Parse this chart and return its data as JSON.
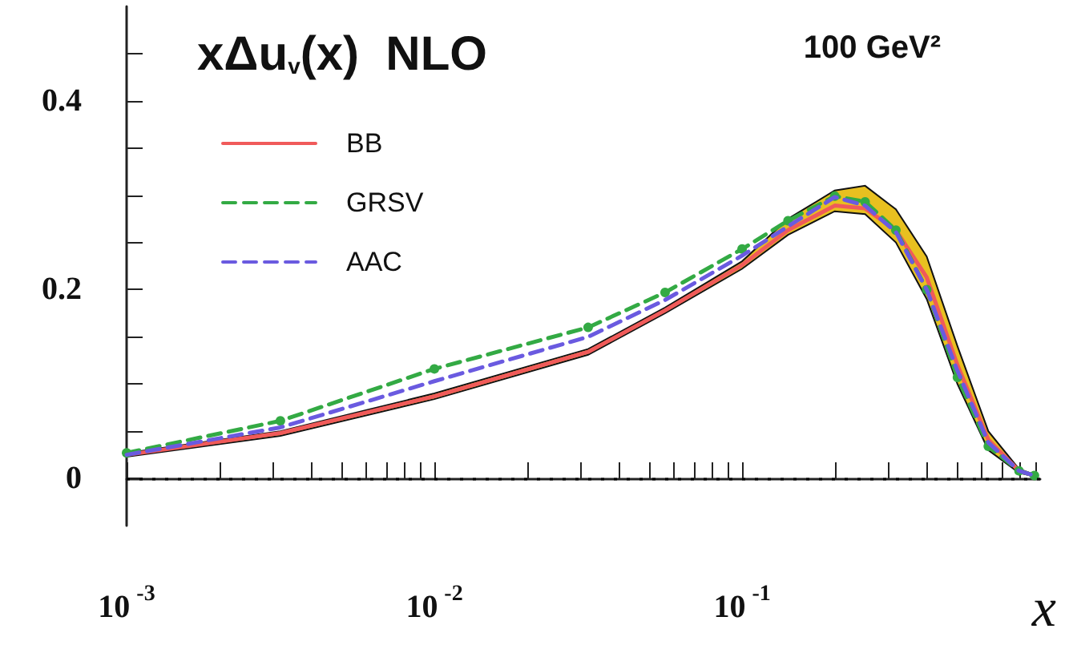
{
  "chart_data": {
    "type": "line",
    "title": "xΔu$_{v}$(x)  NLO",
    "xlabel": "x",
    "annotations": [
      "100 GeV²"
    ],
    "x": [
      0.001,
      0.00316,
      0.01,
      0.0316,
      0.0562,
      0.1,
      0.141,
      0.2,
      0.251,
      0.316,
      0.398,
      0.501,
      0.631,
      0.794,
      0.891
    ],
    "series": [
      {
        "name": "BB",
        "color": "#f05a5a",
        "line_style": "solid",
        "marker": "none",
        "values": [
          0.025,
          0.048,
          0.087,
          0.134,
          0.178,
          0.226,
          0.263,
          0.289,
          0.286,
          0.263,
          0.213,
          0.12,
          0.041,
          0.008,
          0.003
        ],
        "lower": [
          0.023,
          0.045,
          0.084,
          0.131,
          0.175,
          0.222,
          0.258,
          0.283,
          0.28,
          0.25,
          0.19,
          0.1,
          0.03,
          0.006,
          0.002
        ],
        "upper": [
          0.027,
          0.05,
          0.09,
          0.137,
          0.181,
          0.23,
          0.275,
          0.305,
          0.31,
          0.285,
          0.235,
          0.14,
          0.05,
          0.01,
          0.004
        ]
      },
      {
        "name": "GRSV",
        "color": "#33aa44",
        "line_style": "dashed",
        "marker": "circle",
        "values": [
          0.027,
          0.061,
          0.116,
          0.16,
          0.197,
          0.243,
          0.273,
          0.299,
          0.293,
          0.263,
          0.2,
          0.107,
          0.034,
          0.008,
          0.003
        ]
      },
      {
        "name": "AAC",
        "color": "#6a5ae0",
        "line_style": "dashed",
        "marker": "none",
        "values": [
          0.025,
          0.054,
          0.103,
          0.15,
          0.189,
          0.236,
          0.267,
          0.298,
          0.289,
          0.261,
          0.2,
          0.114,
          0.038,
          0.008,
          0.003
        ]
      }
    ],
    "log": "x",
    "xlim": [
      0.001,
      0.93
    ],
    "xticks": [
      {
        "value": 0.001,
        "label": "10$^{-3}$"
      },
      {
        "value": 0.002,
        "label": null
      },
      {
        "value": 0.003,
        "label": null
      },
      {
        "value": 0.004,
        "label": null
      },
      {
        "value": 0.005,
        "label": null
      },
      {
        "value": 0.006,
        "label": null
      },
      {
        "value": 0.007,
        "label": null
      },
      {
        "value": 0.008,
        "label": null
      },
      {
        "value": 0.009,
        "label": null
      },
      {
        "value": 0.01,
        "label": "10$^{-2}$"
      },
      {
        "value": 0.02,
        "label": null
      },
      {
        "value": 0.03,
        "label": null
      },
      {
        "value": 0.04,
        "label": null
      },
      {
        "value": 0.05,
        "label": null
      },
      {
        "value": 0.06,
        "label": null
      },
      {
        "value": 0.07,
        "label": null
      },
      {
        "value": 0.08,
        "label": null
      },
      {
        "value": 0.09,
        "label": null
      },
      {
        "value": 0.1,
        "label": "10$^{-1}$"
      },
      {
        "value": 0.2,
        "label": null
      },
      {
        "value": 0.3,
        "label": null
      },
      {
        "value": 0.4,
        "label": null
      },
      {
        "value": 0.5,
        "label": null
      },
      {
        "value": 0.6,
        "label": null
      },
      {
        "value": 0.7,
        "label": null
      },
      {
        "value": 0.8,
        "label": null
      },
      {
        "value": 0.9,
        "label": null
      }
    ],
    "ylim": [
      -0.05,
      0.5
    ],
    "yticks": [
      0,
      {
        "value": 0.05,
        "label": null
      },
      {
        "value": 0.1,
        "label": null
      },
      {
        "value": 0.15,
        "label": null
      },
      0.2,
      {
        "value": 0.25,
        "label": null
      },
      {
        "value": 0.3,
        "label": null
      },
      {
        "value": 0.35,
        "label": null
      },
      0.4,
      {
        "value": 0.45,
        "label": null
      }
    ],
    "ref_lines": [
      {
        "axis": "y",
        "value": 0,
        "label": null,
        "color": "#000000",
        "line_style": "dotted"
      }
    ],
    "grid": false,
    "legend": "top left"
  }
}
